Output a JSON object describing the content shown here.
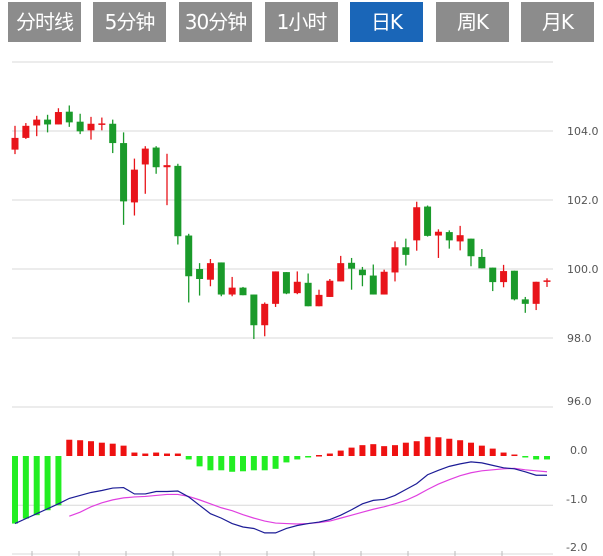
{
  "tabs": [
    {
      "label": "分时线",
      "active": false
    },
    {
      "label": "5分钟",
      "active": false
    },
    {
      "label": "30分钟",
      "active": false
    },
    {
      "label": "1小时",
      "active": false
    },
    {
      "label": "日K",
      "active": true
    },
    {
      "label": "周K",
      "active": false
    },
    {
      "label": "月K",
      "active": false
    }
  ],
  "colors": {
    "tab_bg": "#8c8c8c",
    "tab_active_bg": "#1a66b8",
    "up": "#e8141a",
    "down": "#1a9a2a",
    "hist_up": "#ee1111",
    "hist_down": "#22ee22",
    "dif": "#1c1c96",
    "dea": "#e040e0",
    "grid": "#d8d8d8"
  },
  "chart_data": [
    {
      "type": "candlestick",
      "y_ticks": [
        "104.0",
        "102.0",
        "100.0",
        "98.0",
        "96.0"
      ],
      "y_tick_values": [
        104,
        102,
        100,
        98,
        96
      ],
      "ylim": [
        96,
        106
      ],
      "grid": true,
      "ohlc": [
        [
          103.46,
          104.15,
          103.33,
          103.8
        ],
        [
          103.8,
          104.23,
          103.77,
          104.15
        ],
        [
          104.16,
          104.44,
          103.85,
          104.33
        ],
        [
          104.33,
          104.47,
          103.96,
          104.19
        ],
        [
          104.19,
          104.66,
          104.19,
          104.55
        ],
        [
          104.56,
          104.74,
          104.12,
          104.25
        ],
        [
          104.27,
          104.5,
          103.91,
          103.99
        ],
        [
          104.02,
          104.41,
          103.75,
          104.21
        ],
        [
          104.19,
          104.39,
          104.02,
          104.22
        ],
        [
          104.21,
          104.33,
          103.36,
          103.65
        ],
        [
          103.65,
          103.96,
          101.28,
          101.96
        ],
        [
          101.93,
          103.2,
          101.55,
          102.88
        ],
        [
          103.03,
          103.56,
          102.18,
          103.49
        ],
        [
          103.52,
          103.56,
          102.76,
          102.95
        ],
        [
          102.95,
          103.34,
          101.85,
          103.01
        ],
        [
          102.99,
          103.05,
          100.71,
          100.95
        ],
        [
          100.97,
          101.02,
          99.03,
          99.79
        ],
        [
          100.0,
          100.17,
          99.23,
          99.71
        ],
        [
          99.69,
          100.29,
          99.5,
          100.17
        ],
        [
          100.19,
          100.19,
          99.21,
          99.26
        ],
        [
          99.26,
          99.77,
          99.21,
          99.46
        ],
        [
          99.46,
          99.48,
          99.24,
          99.24
        ],
        [
          99.26,
          99.26,
          97.97,
          98.37
        ],
        [
          98.37,
          99.03,
          98.05,
          98.99
        ],
        [
          98.99,
          99.93,
          98.9,
          99.93
        ],
        [
          99.91,
          99.91,
          99.27,
          99.29
        ],
        [
          99.3,
          99.93,
          99.27,
          99.63
        ],
        [
          99.6,
          99.87,
          98.92,
          98.92
        ],
        [
          98.92,
          99.4,
          98.92,
          99.25
        ],
        [
          99.19,
          99.71,
          99.19,
          99.66
        ],
        [
          99.64,
          100.38,
          99.64,
          100.17
        ],
        [
          100.18,
          100.32,
          99.4,
          100.01
        ],
        [
          99.98,
          100.06,
          99.5,
          99.82
        ],
        [
          99.81,
          100.13,
          99.26,
          99.26
        ],
        [
          99.26,
          99.98,
          99.26,
          99.92
        ],
        [
          99.9,
          100.8,
          99.64,
          100.63
        ],
        [
          100.63,
          100.88,
          100.1,
          100.41
        ],
        [
          100.83,
          101.95,
          100.53,
          101.79
        ],
        [
          101.81,
          101.84,
          100.94,
          100.96
        ],
        [
          100.97,
          101.15,
          100.32,
          101.08
        ],
        [
          101.07,
          101.12,
          100.59,
          100.83
        ],
        [
          100.8,
          101.25,
          100.54,
          100.98
        ],
        [
          100.88,
          100.88,
          100.08,
          100.37
        ],
        [
          100.35,
          100.58,
          100.02,
          100.02
        ],
        [
          100.04,
          100.04,
          99.36,
          99.62
        ],
        [
          99.62,
          100.12,
          99.47,
          99.94
        ],
        [
          99.95,
          99.95,
          99.09,
          99.12
        ],
        [
          99.12,
          99.19,
          98.73,
          98.99
        ],
        [
          98.99,
          99.63,
          98.81,
          99.63
        ],
        [
          99.63,
          99.73,
          99.48,
          99.67
        ]
      ]
    },
    {
      "type": "macd",
      "y_ticks": [
        "0.0",
        "-1.0",
        "-2.0"
      ],
      "y_tick_values": [
        0,
        -1,
        -2
      ],
      "ylim": [
        -2,
        1
      ],
      "histogram": [
        -1.37,
        -1.27,
        -1.2,
        -1.1,
        -1.0,
        0.33,
        0.32,
        0.3,
        0.27,
        0.25,
        0.21,
        0.07,
        0.05,
        0.07,
        0.05,
        0.05,
        -0.07,
        -0.21,
        -0.29,
        -0.29,
        -0.32,
        -0.31,
        -0.29,
        -0.29,
        -0.26,
        -0.13,
        -0.07,
        -0.01,
        0.02,
        0.05,
        0.11,
        0.17,
        0.22,
        0.24,
        0.2,
        0.22,
        0.27,
        0.3,
        0.39,
        0.38,
        0.35,
        0.32,
        0.27,
        0.21,
        0.15,
        0.07,
        0.03,
        -0.02,
        -0.07,
        -0.07
      ],
      "dif": [
        -1.37,
        -1.27,
        -1.17,
        -1.07,
        -0.97,
        -0.86,
        -0.8,
        -0.74,
        -0.7,
        -0.65,
        -0.64,
        -0.77,
        -0.77,
        -0.72,
        -0.72,
        -0.71,
        -0.83,
        -1.0,
        -1.17,
        -1.26,
        -1.37,
        -1.44,
        -1.47,
        -1.56,
        -1.56,
        -1.47,
        -1.41,
        -1.37,
        -1.34,
        -1.29,
        -1.2,
        -1.09,
        -0.97,
        -0.9,
        -0.88,
        -0.8,
        -0.68,
        -0.56,
        -0.38,
        -0.29,
        -0.21,
        -0.16,
        -0.12,
        -0.14,
        -0.19,
        -0.24,
        -0.26,
        -0.32,
        -0.39,
        -0.39
      ],
      "dea": [
        null,
        null,
        null,
        null,
        null,
        -1.22,
        -1.14,
        -1.03,
        -0.95,
        -0.89,
        -0.85,
        -0.83,
        -0.82,
        -0.8,
        -0.78,
        -0.78,
        -0.82,
        -0.89,
        -0.97,
        -1.05,
        -1.11,
        -1.19,
        -1.26,
        -1.32,
        -1.36,
        -1.37,
        -1.38,
        -1.37,
        -1.35,
        -1.32,
        -1.26,
        -1.2,
        -1.14,
        -1.08,
        -1.03,
        -0.97,
        -0.9,
        -0.8,
        -0.68,
        -0.57,
        -0.48,
        -0.4,
        -0.34,
        -0.3,
        -0.28,
        -0.26,
        -0.25,
        -0.28,
        -0.3,
        -0.32
      ]
    }
  ]
}
